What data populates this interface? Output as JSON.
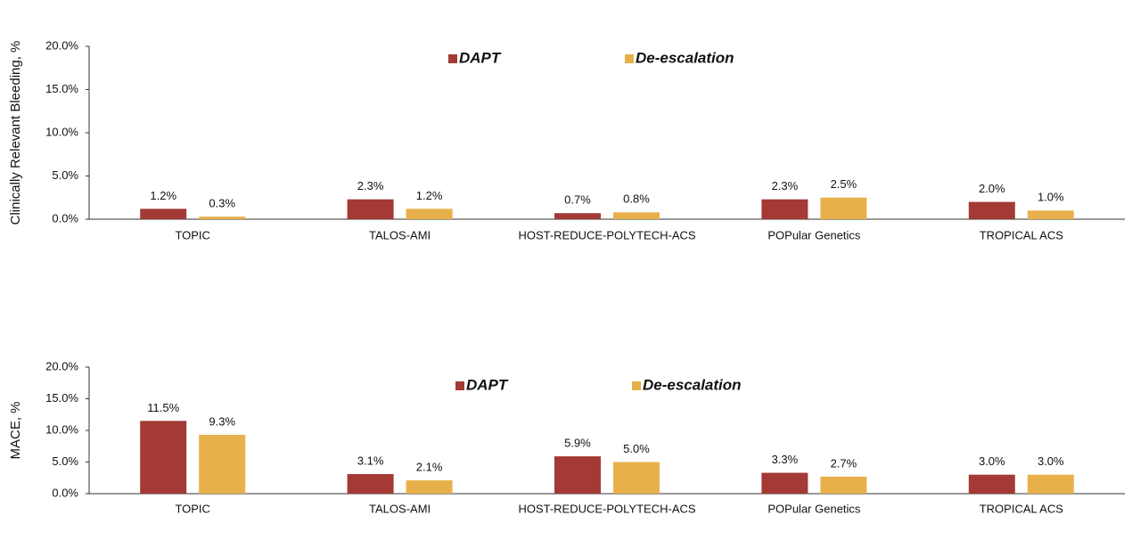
{
  "chart_data": [
    {
      "type": "bar",
      "ylabel": "Clinically Relevant Bleeding, %",
      "categories": [
        "TOPIC",
        "TALOS-AMI",
        "HOST-REDUCE-POLYTECH-ACS",
        "POPular Genetics",
        "TROPICAL ACS"
      ],
      "series": [
        {
          "name": "DAPT",
          "color": "#a33a35",
          "values": [
            1.2,
            2.3,
            0.7,
            2.3,
            2.0
          ],
          "value_labels": [
            "1.2%",
            "2.3%",
            "0.7%",
            "2.3%",
            "2.0%"
          ]
        },
        {
          "name": "De-escalation",
          "color": "#e8b04b",
          "values": [
            0.3,
            1.2,
            0.8,
            2.5,
            1.0
          ],
          "value_labels": [
            "0.3%",
            "1.2%",
            "0.8%",
            "2.5%",
            "1.0%"
          ]
        }
      ],
      "ylim": [
        0,
        20
      ],
      "yticks": [
        {
          "value": 0,
          "label": "0.0%"
        },
        {
          "value": 5,
          "label": "5.0%"
        },
        {
          "value": 10,
          "label": "10.0%"
        },
        {
          "value": 15,
          "label": "15.0%"
        },
        {
          "value": 20,
          "label": "20.0%"
        }
      ],
      "legend": "top"
    },
    {
      "type": "bar",
      "ylabel": "MACE, %",
      "categories": [
        "TOPIC",
        "TALOS-AMI",
        "HOST-REDUCE-POLYTECH-ACS",
        "POPular Genetics",
        "TROPICAL ACS"
      ],
      "series": [
        {
          "name": "DAPT",
          "color": "#a33a35",
          "values": [
            11.5,
            3.1,
            5.9,
            3.3,
            3.0
          ],
          "value_labels": [
            "11.5%",
            "3.1%",
            "5.9%",
            "3.3%",
            "3.0%"
          ]
        },
        {
          "name": "De-escalation",
          "color": "#e8b04b",
          "values": [
            9.3,
            2.1,
            5.0,
            2.7,
            3.0
          ],
          "value_labels": [
            "9.3%",
            "2.1%",
            "5.0%",
            "2.7%",
            "3.0%"
          ]
        }
      ],
      "ylim": [
        0,
        20
      ],
      "yticks": [
        {
          "value": 0,
          "label": "0.0%"
        },
        {
          "value": 5,
          "label": "5.0%"
        },
        {
          "value": 10,
          "label": "10.0%"
        },
        {
          "value": 15,
          "label": "15.0%"
        },
        {
          "value": 20,
          "label": "20.0%"
        }
      ],
      "legend": "top"
    }
  ]
}
